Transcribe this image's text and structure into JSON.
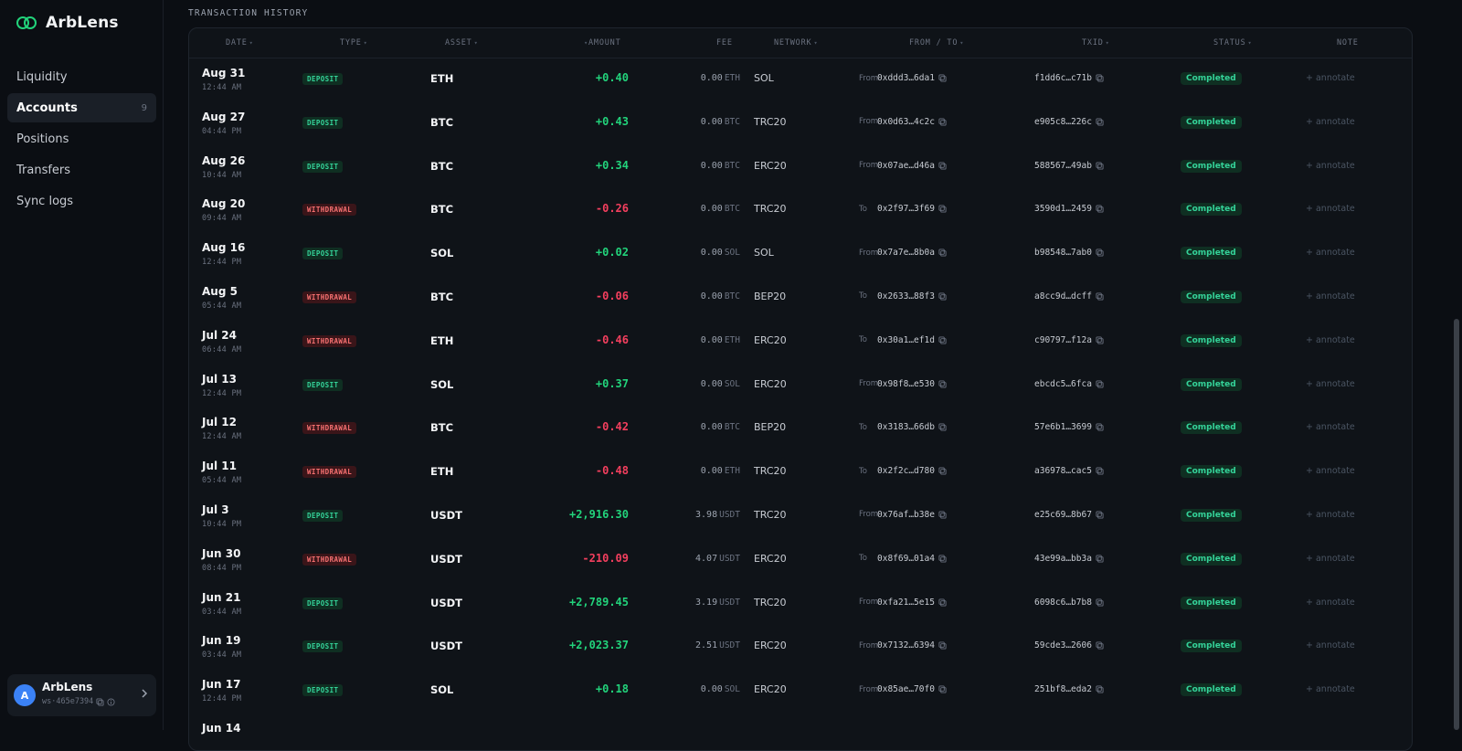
{
  "app": {
    "name": "ArbLens"
  },
  "sidebar": {
    "items": [
      {
        "label": "Liquidity",
        "count": ""
      },
      {
        "label": "Accounts",
        "count": "9"
      },
      {
        "label": "Positions",
        "count": ""
      },
      {
        "label": "Transfers",
        "count": ""
      },
      {
        "label": "Sync logs",
        "count": ""
      }
    ],
    "active_index": 1,
    "user": {
      "initial": "A",
      "name": "ArbLens",
      "workspace": "ws·465e7394"
    }
  },
  "section": {
    "title": "TRANSACTION HISTORY"
  },
  "table": {
    "headers": [
      "DATE",
      "TYPE",
      "ASSET",
      "AMOUNT",
      "FEE",
      "NETWORK",
      "FROM / TO",
      "TXID",
      "STATUS",
      "NOTE"
    ],
    "rows": [
      {
        "date": "Aug 31",
        "time": "12:44 AM",
        "type": "DEPOSIT",
        "asset": "ETH",
        "amount": "+0.40",
        "fee": "0.00",
        "fee_unit": "ETH",
        "network": "SOL",
        "dir": "From",
        "addr": "0xddd3…6da1",
        "txid": "f1dd6c…c71b",
        "status": "Completed",
        "note": "+ annotate"
      },
      {
        "date": "Aug 27",
        "time": "04:44 PM",
        "type": "DEPOSIT",
        "asset": "BTC",
        "amount": "+0.43",
        "fee": "0.00",
        "fee_unit": "BTC",
        "network": "TRC20",
        "dir": "From",
        "addr": "0x0d63…4c2c",
        "txid": "e905c8…226c",
        "status": "Completed",
        "note": "+ annotate"
      },
      {
        "date": "Aug 26",
        "time": "10:44 AM",
        "type": "DEPOSIT",
        "asset": "BTC",
        "amount": "+0.34",
        "fee": "0.00",
        "fee_unit": "BTC",
        "network": "ERC20",
        "dir": "From",
        "addr": "0x07ae…d46a",
        "txid": "588567…49ab",
        "status": "Completed",
        "note": "+ annotate"
      },
      {
        "date": "Aug 20",
        "time": "09:44 AM",
        "type": "WITHDRAWAL",
        "asset": "BTC",
        "amount": "-0.26",
        "fee": "0.00",
        "fee_unit": "BTC",
        "network": "TRC20",
        "dir": "To",
        "addr": "0x2f97…3f69",
        "txid": "3590d1…2459",
        "status": "Completed",
        "note": "+ annotate"
      },
      {
        "date": "Aug 16",
        "time": "12:44 PM",
        "type": "DEPOSIT",
        "asset": "SOL",
        "amount": "+0.02",
        "fee": "0.00",
        "fee_unit": "SOL",
        "network": "SOL",
        "dir": "From",
        "addr": "0x7a7e…8b0a",
        "txid": "b98548…7ab0",
        "status": "Completed",
        "note": "+ annotate"
      },
      {
        "date": "Aug 5",
        "time": "05:44 AM",
        "type": "WITHDRAWAL",
        "asset": "BTC",
        "amount": "-0.06",
        "fee": "0.00",
        "fee_unit": "BTC",
        "network": "BEP20",
        "dir": "To",
        "addr": "0x2633…88f3",
        "txid": "a8cc9d…dcff",
        "status": "Completed",
        "note": "+ annotate"
      },
      {
        "date": "Jul 24",
        "time": "06:44 AM",
        "type": "WITHDRAWAL",
        "asset": "ETH",
        "amount": "-0.46",
        "fee": "0.00",
        "fee_unit": "ETH",
        "network": "ERC20",
        "dir": "To",
        "addr": "0x30a1…ef1d",
        "txid": "c90797…f12a",
        "status": "Completed",
        "note": "+ annotate"
      },
      {
        "date": "Jul 13",
        "time": "12:44 PM",
        "type": "DEPOSIT",
        "asset": "SOL",
        "amount": "+0.37",
        "fee": "0.00",
        "fee_unit": "SOL",
        "network": "ERC20",
        "dir": "From",
        "addr": "0x98f8…e530",
        "txid": "ebcdc5…6fca",
        "status": "Completed",
        "note": "+ annotate"
      },
      {
        "date": "Jul 12",
        "time": "12:44 AM",
        "type": "WITHDRAWAL",
        "asset": "BTC",
        "amount": "-0.42",
        "fee": "0.00",
        "fee_unit": "BTC",
        "network": "BEP20",
        "dir": "To",
        "addr": "0x3183…66db",
        "txid": "57e6b1…3699",
        "status": "Completed",
        "note": "+ annotate"
      },
      {
        "date": "Jul 11",
        "time": "05:44 AM",
        "type": "WITHDRAWAL",
        "asset": "ETH",
        "amount": "-0.48",
        "fee": "0.00",
        "fee_unit": "ETH",
        "network": "TRC20",
        "dir": "To",
        "addr": "0x2f2c…d780",
        "txid": "a36978…cac5",
        "status": "Completed",
        "note": "+ annotate"
      },
      {
        "date": "Jul 3",
        "time": "10:44 PM",
        "type": "DEPOSIT",
        "asset": "USDT",
        "amount": "+2,916.30",
        "fee": "3.98",
        "fee_unit": "USDT",
        "network": "TRC20",
        "dir": "From",
        "addr": "0x76af…b38e",
        "txid": "e25c69…8b67",
        "status": "Completed",
        "note": "+ annotate"
      },
      {
        "date": "Jun 30",
        "time": "08:44 PM",
        "type": "WITHDRAWAL",
        "asset": "USDT",
        "amount": "-210.09",
        "fee": "4.07",
        "fee_unit": "USDT",
        "network": "ERC20",
        "dir": "To",
        "addr": "0x8f69…01a4",
        "txid": "43e99a…bb3a",
        "status": "Completed",
        "note": "+ annotate"
      },
      {
        "date": "Jun 21",
        "time": "03:44 AM",
        "type": "DEPOSIT",
        "asset": "USDT",
        "amount": "+2,789.45",
        "fee": "3.19",
        "fee_unit": "USDT",
        "network": "TRC20",
        "dir": "From",
        "addr": "0xfa21…5e15",
        "txid": "6098c6…b7b8",
        "status": "Completed",
        "note": "+ annotate"
      },
      {
        "date": "Jun 19",
        "time": "03:44 AM",
        "type": "DEPOSIT",
        "asset": "USDT",
        "amount": "+2,023.37",
        "fee": "2.51",
        "fee_unit": "USDT",
        "network": "ERC20",
        "dir": "From",
        "addr": "0x7132…6394",
        "txid": "59cde3…2606",
        "status": "Completed",
        "note": "+ annotate"
      },
      {
        "date": "Jun 17",
        "time": "12:44 PM",
        "type": "DEPOSIT",
        "asset": "SOL",
        "amount": "+0.18",
        "fee": "0.00",
        "fee_unit": "SOL",
        "network": "ERC20",
        "dir": "From",
        "addr": "0x85ae…70f0",
        "txid": "251bf8…eda2",
        "status": "Completed",
        "note": "+ annotate"
      },
      {
        "date": "Jun 14",
        "time": "",
        "type": "",
        "asset": "",
        "amount": "",
        "fee": "",
        "fee_unit": "",
        "network": "",
        "dir": "",
        "addr": "",
        "txid": "",
        "status": "",
        "note": ""
      }
    ]
  },
  "colors": {
    "accent_green": "#22d37b",
    "negative": "#f43f5e",
    "background": "#0b0e13"
  }
}
